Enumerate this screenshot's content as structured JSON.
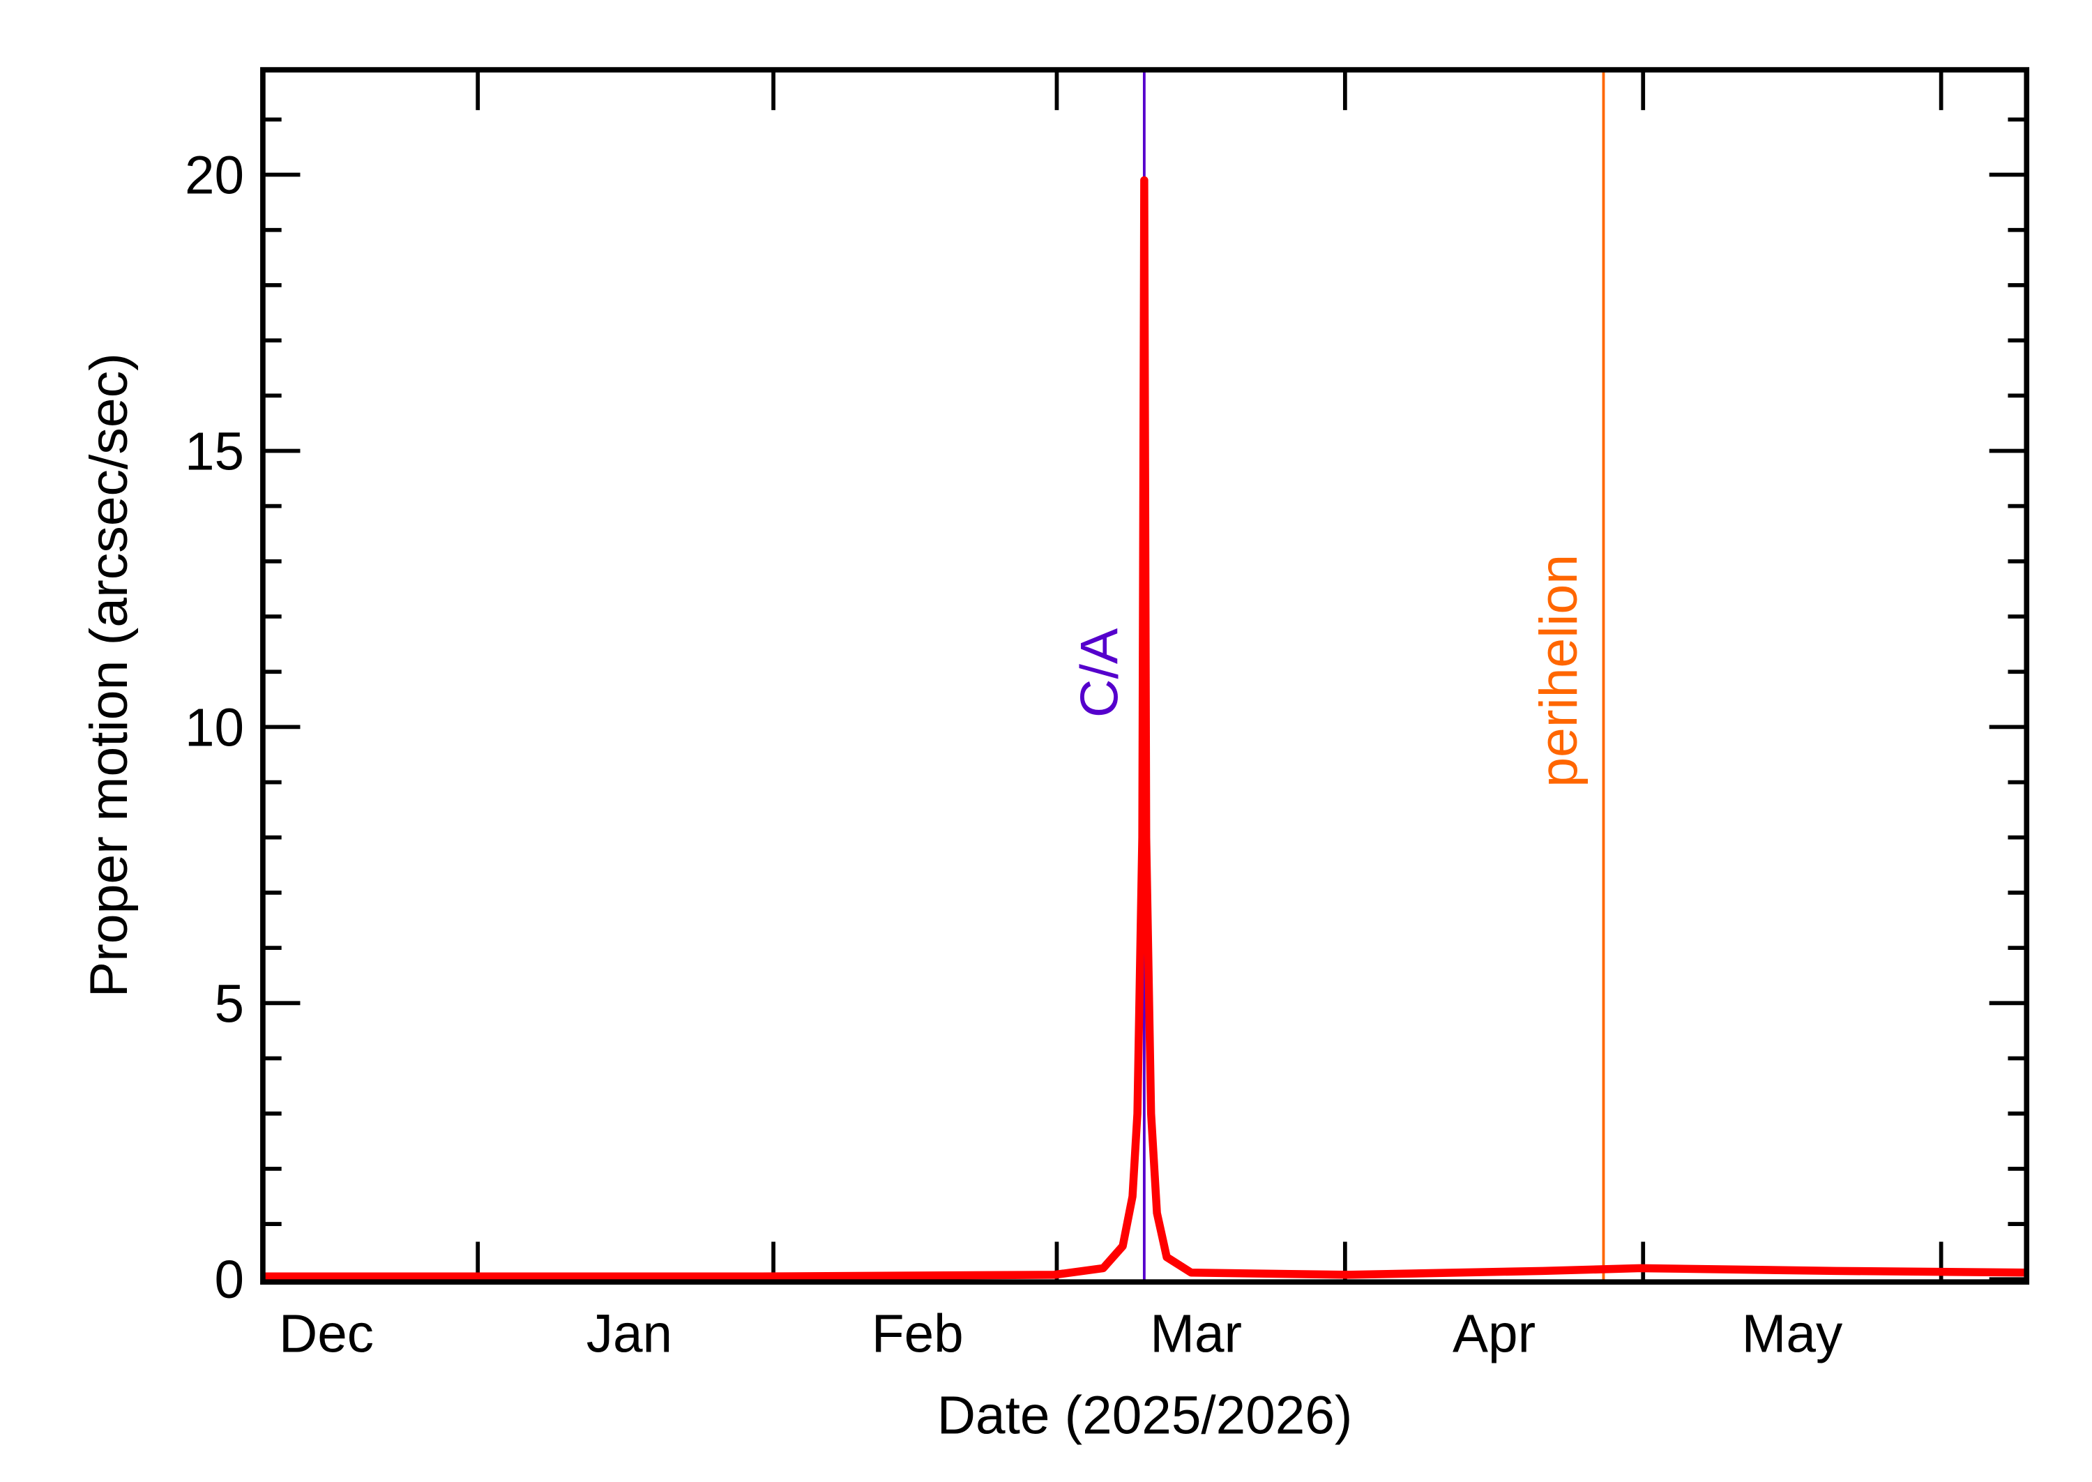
{
  "chart_data": {
    "type": "line",
    "x_label": "Date (2025/2026)",
    "y_label": "Proper motion (arcsec/sec)",
    "x": [
      9,
      30,
      60,
      90,
      95,
      97,
      98,
      98.5,
      99,
      99.2,
      99.4,
      99.9,
      100.5,
      101.5,
      104,
      120,
      140,
      150,
      170,
      189.5
    ],
    "series": [
      {
        "color": "#ff0000",
        "values": [
          0.05,
          0.05,
          0.05,
          0.08,
          0.2,
          0.6,
          1.5,
          3,
          8,
          19.9,
          8,
          3,
          1.2,
          0.4,
          0.12,
          0.08,
          0.15,
          0.2,
          0.15,
          0.12
        ]
      }
    ],
    "xlim": [
      9,
      189.5
    ],
    "xticks": [
      {
        "value": 15.5,
        "label": "Dec"
      },
      {
        "value": 46.5,
        "label": "Jan"
      },
      {
        "value": 76,
        "label": "Feb"
      },
      {
        "value": 104.5,
        "label": "Mar"
      },
      {
        "value": 135,
        "label": "Apr"
      },
      {
        "value": 165.5,
        "label": "May"
      }
    ],
    "ylim": [
      -0.05,
      21.9
    ],
    "yticks": [
      0,
      5,
      10,
      15,
      20
    ],
    "yminorticks": [
      1,
      2,
      3,
      4,
      6,
      7,
      8,
      9,
      11,
      12,
      13,
      14,
      16,
      17,
      18,
      19,
      21
    ],
    "annotations": [
      {
        "label": "C/A",
        "x": 99.2,
        "color": "#5500cc"
      },
      {
        "label": "perihelion",
        "x": 146.2,
        "color": "#ff6600"
      }
    ]
  }
}
